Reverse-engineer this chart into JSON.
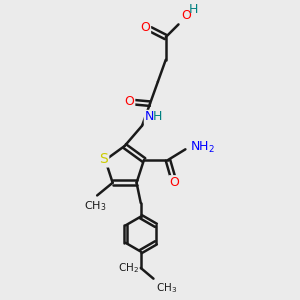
{
  "background_color": "#ebebeb",
  "bond_color": "#1a1a1a",
  "bond_width": 1.8,
  "atom_colors": {
    "O": "#ff0000",
    "N": "#0000ff",
    "S": "#cccc00",
    "H_teal": "#008080",
    "C": "#1a1a1a"
  },
  "font_size": 9,
  "figsize": [
    3.0,
    3.0
  ],
  "dpi": 100
}
